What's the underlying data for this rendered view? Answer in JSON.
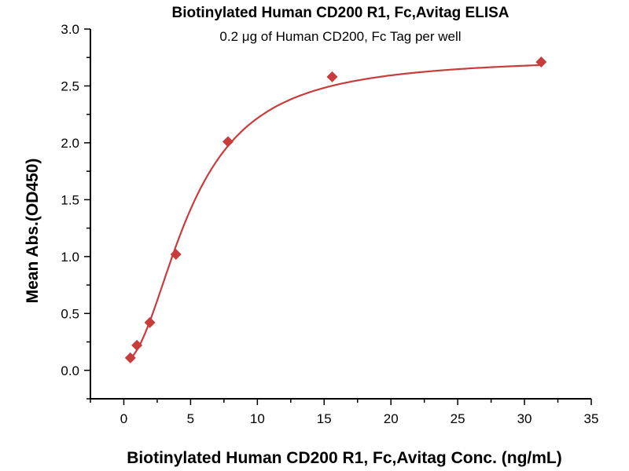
{
  "chart_data": {
    "type": "scatter",
    "title": "Biotinylated Human CD200 R1, Fc,Avitag ELISA",
    "subtitle": "0.2 μg of Human CD200, Fc Tag per well",
    "xlabel": "Biotinylated Human CD200 R1, Fc,Avitag Conc. (ng/mL)",
    "ylabel": "Mean Abs.(OD450)",
    "xlim": [
      -2.5,
      35
    ],
    "ylim": [
      -0.25,
      3.0
    ],
    "xticks": [
      "0",
      "5",
      "10",
      "15",
      "20",
      "25",
      "30",
      "35"
    ],
    "yticks": [
      "0.0",
      "0.5",
      "1.0",
      "1.5",
      "2.0",
      "2.5",
      "3.0"
    ],
    "grid": false,
    "color": "#c83c3c",
    "series": [
      {
        "name": "OD450",
        "x": [
          0.49,
          0.98,
          1.95,
          3.9,
          7.8,
          15.6,
          31.25
        ],
        "y": [
          0.11,
          0.22,
          0.42,
          1.02,
          2.01,
          2.58,
          2.71
        ]
      }
    ],
    "fit": {
      "model": "4PL",
      "bottom": 0.08,
      "top": 2.75,
      "ec50": 5.0,
      "hill": 2.0
    }
  }
}
